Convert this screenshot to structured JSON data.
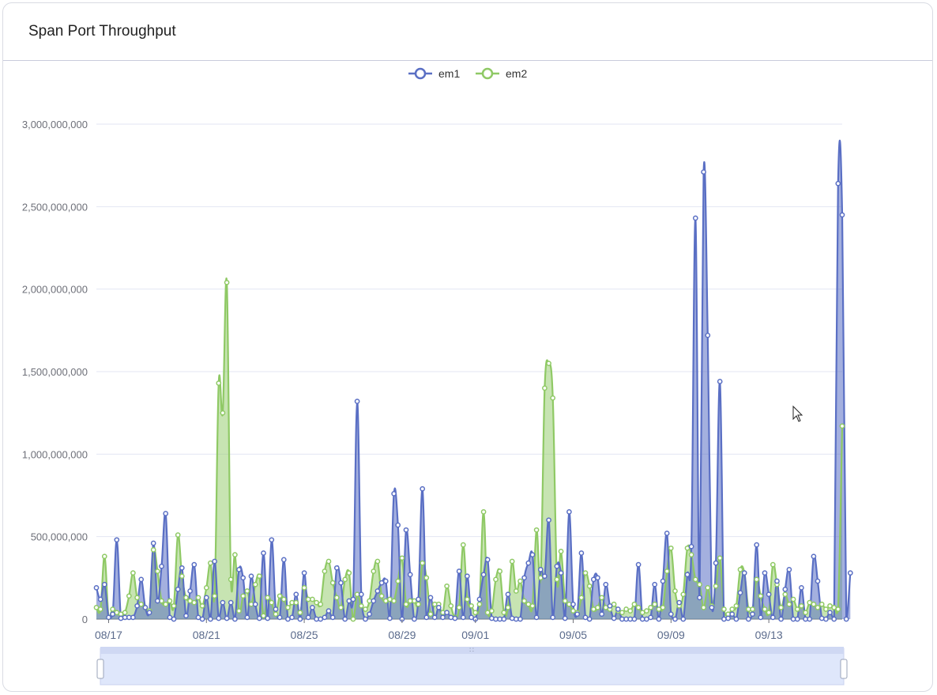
{
  "card": {
    "title": "Span Port Throughput"
  },
  "colors": {
    "em1": "#5a6fc4",
    "em2": "#8fc965",
    "grid": "#e3e6f3",
    "axis": "#6e7079",
    "zoom_fill": "#dfe7fb",
    "zoom_line": "#9fb3ee"
  },
  "chart_data": {
    "type": "area",
    "title": "Span Port Throughput",
    "legend": [
      "em1",
      "em2"
    ],
    "legend_position": "top-center",
    "grid": true,
    "ylim": [
      0,
      3000000000
    ],
    "y_ticks": [
      "0",
      "500,000,000",
      "1,000,000,000",
      "1,500,000,000",
      "2,000,000,000",
      "2,500,000,000",
      "3,000,000,000"
    ],
    "x_tick_labels": [
      "08/17",
      "08/21",
      "08/25",
      "08/29",
      "09/01",
      "09/05",
      "09/09",
      "09/13"
    ],
    "x_start": "08/16 12:00",
    "x_end": "09/15 24:00",
    "points_per_day": 6,
    "series": [
      {
        "name": "em1",
        "values": [
          190000000,
          120000000,
          210000000,
          10000000,
          30000000,
          480000000,
          5000000,
          10000000,
          10000000,
          10000000,
          80000000,
          240000000,
          70000000,
          40000000,
          460000000,
          110000000,
          320000000,
          640000000,
          10000000,
          0,
          180000000,
          310000000,
          20000000,
          170000000,
          330000000,
          10000000,
          0,
          130000000,
          0,
          350000000,
          5000000,
          100000000,
          5000000,
          100000000,
          0,
          300000000,
          250000000,
          10000000,
          260000000,
          90000000,
          5000000,
          400000000,
          5000000,
          480000000,
          60000000,
          10000000,
          360000000,
          0,
          10000000,
          150000000,
          0,
          280000000,
          10000000,
          70000000,
          0,
          0,
          10000000,
          50000000,
          10000000,
          310000000,
          220000000,
          0,
          110000000,
          120000000,
          1320000000,
          150000000,
          0,
          30000000,
          110000000,
          170000000,
          220000000,
          230000000,
          5000000,
          760000000,
          570000000,
          0,
          540000000,
          270000000,
          0,
          120000000,
          790000000,
          10000000,
          130000000,
          10000000,
          70000000,
          10000000,
          40000000,
          10000000,
          5000000,
          290000000,
          10000000,
          260000000,
          10000000,
          0,
          120000000,
          270000000,
          360000000,
          5000000,
          0,
          0,
          0,
          150000000,
          5000000,
          0,
          0,
          250000000,
          340000000,
          390000000,
          10000000,
          300000000,
          260000000,
          600000000,
          10000000,
          320000000,
          280000000,
          5000000,
          650000000,
          90000000,
          30000000,
          400000000,
          10000000,
          0,
          240000000,
          250000000,
          30000000,
          210000000,
          80000000,
          5000000,
          60000000,
          0,
          0,
          0,
          0,
          330000000,
          0,
          0,
          10000000,
          210000000,
          0,
          230000000,
          520000000,
          30000000,
          0,
          100000000,
          0,
          270000000,
          440000000,
          2430000000,
          130000000,
          2710000000,
          1720000000,
          70000000,
          340000000,
          1440000000,
          0,
          5000000,
          30000000,
          0,
          160000000,
          280000000,
          0,
          30000000,
          450000000,
          10000000,
          280000000,
          150000000,
          10000000,
          230000000,
          0,
          180000000,
          300000000,
          0,
          0,
          190000000,
          0,
          0,
          380000000,
          230000000,
          5000000,
          0,
          40000000,
          0,
          2640000000,
          2450000000,
          0,
          280000000
        ]
      },
      {
        "name": "em2",
        "values": [
          70000000,
          60000000,
          380000000,
          10000000,
          60000000,
          40000000,
          30000000,
          40000000,
          140000000,
          280000000,
          130000000,
          90000000,
          70000000,
          50000000,
          420000000,
          290000000,
          110000000,
          90000000,
          110000000,
          80000000,
          510000000,
          260000000,
          130000000,
          110000000,
          100000000,
          130000000,
          80000000,
          190000000,
          340000000,
          140000000,
          1430000000,
          1250000000,
          2040000000,
          240000000,
          390000000,
          50000000,
          140000000,
          170000000,
          90000000,
          210000000,
          260000000,
          20000000,
          130000000,
          100000000,
          30000000,
          140000000,
          120000000,
          70000000,
          100000000,
          100000000,
          40000000,
          190000000,
          120000000,
          120000000,
          100000000,
          90000000,
          290000000,
          350000000,
          220000000,
          130000000,
          70000000,
          240000000,
          280000000,
          0,
          150000000,
          80000000,
          60000000,
          110000000,
          290000000,
          350000000,
          140000000,
          110000000,
          120000000,
          110000000,
          230000000,
          370000000,
          90000000,
          110000000,
          110000000,
          90000000,
          340000000,
          250000000,
          30000000,
          90000000,
          90000000,
          40000000,
          200000000,
          80000000,
          10000000,
          70000000,
          450000000,
          120000000,
          80000000,
          40000000,
          90000000,
          650000000,
          40000000,
          50000000,
          240000000,
          290000000,
          40000000,
          70000000,
          350000000,
          170000000,
          230000000,
          110000000,
          90000000,
          80000000,
          540000000,
          250000000,
          1400000000,
          1550000000,
          1340000000,
          240000000,
          410000000,
          110000000,
          90000000,
          50000000,
          40000000,
          130000000,
          280000000,
          200000000,
          60000000,
          70000000,
          130000000,
          70000000,
          60000000,
          90000000,
          50000000,
          40000000,
          60000000,
          50000000,
          90000000,
          70000000,
          40000000,
          50000000,
          70000000,
          90000000,
          60000000,
          70000000,
          290000000,
          430000000,
          170000000,
          80000000,
          150000000,
          430000000,
          390000000,
          240000000,
          210000000,
          70000000,
          190000000,
          80000000,
          200000000,
          370000000,
          60000000,
          30000000,
          60000000,
          80000000,
          300000000,
          280000000,
          60000000,
          60000000,
          240000000,
          140000000,
          60000000,
          40000000,
          330000000,
          210000000,
          70000000,
          150000000,
          90000000,
          120000000,
          60000000,
          80000000,
          40000000,
          100000000,
          90000000,
          70000000,
          90000000,
          60000000,
          80000000,
          70000000,
          60000000,
          1170000000
        ]
      }
    ]
  }
}
